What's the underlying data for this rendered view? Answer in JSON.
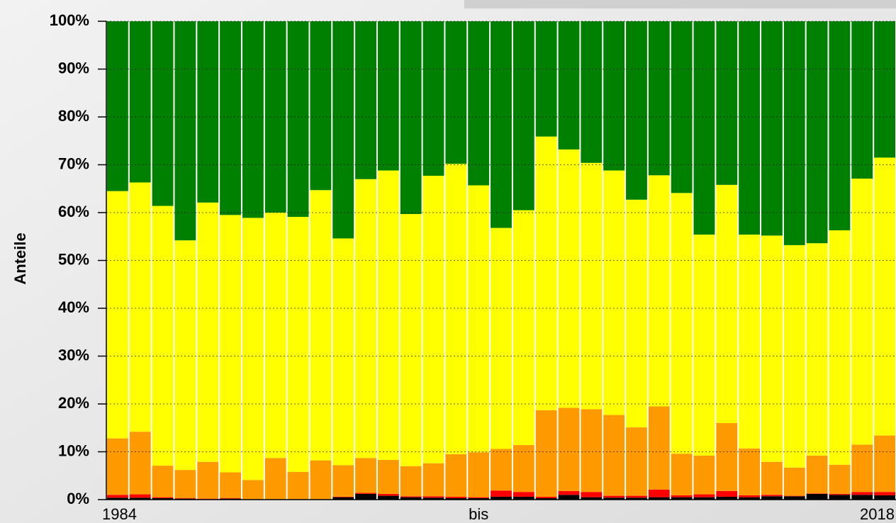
{
  "chart_data": {
    "type": "stacked_bar",
    "y_label": "Anteile",
    "categories": [
      "1984",
      null,
      null,
      null,
      null,
      null,
      null,
      null,
      null,
      null,
      null,
      null,
      null,
      null,
      null,
      null,
      "bis",
      null,
      null,
      null,
      null,
      null,
      null,
      null,
      null,
      null,
      null,
      null,
      null,
      null,
      null,
      null,
      null,
      null,
      "2018"
    ],
    "series": [
      {
        "color": "#000000",
        "values": [
          0.4,
          0.4,
          0.3,
          0.2,
          0.1,
          0.2,
          0.1,
          0.1,
          0.1,
          0.1,
          0.5,
          1.2,
          0.8,
          0.5,
          0.4,
          0.3,
          0.3,
          0.6,
          0.6,
          0.3,
          1.0,
          0.5,
          0.4,
          0.4,
          0.5,
          0.5,
          0.5,
          0.6,
          0.5,
          0.7,
          0.7,
          1.2,
          1.0,
          1.0,
          0.9
        ]
      },
      {
        "color": "#ff0000",
        "values": [
          0.6,
          0.7,
          0.2,
          0.1,
          0.1,
          0.1,
          0,
          0,
          0,
          0,
          0.1,
          0.2,
          0.4,
          0.2,
          0.3,
          0.3,
          0.2,
          1.3,
          1.0,
          0.3,
          0.8,
          1.1,
          0.4,
          0.4,
          1.6,
          0.4,
          0.6,
          1.2,
          0.4,
          0.3,
          0.1,
          0.1,
          0.2,
          0.6,
          0.7
        ]
      },
      {
        "color": "#ff9900",
        "values": [
          11.8,
          13.1,
          6.6,
          5.9,
          7.7,
          5.4,
          4.0,
          8.6,
          5.7,
          8.1,
          6.6,
          7.3,
          7.1,
          6.3,
          6.9,
          8.9,
          9.4,
          8.7,
          9.8,
          18.1,
          17.4,
          17.3,
          16.9,
          14.3,
          17.4,
          8.7,
          8.1,
          14.2,
          9.8,
          6.9,
          5.9,
          7.9,
          6.1,
          9.9,
          11.8
        ]
      },
      {
        "color": "#ffff00",
        "values": [
          51.7,
          52.1,
          54.3,
          48.0,
          54.2,
          53.8,
          54.8,
          51.3,
          53.3,
          56.5,
          47.4,
          58.3,
          60.5,
          52.7,
          60.1,
          60.7,
          55.8,
          46.2,
          49.1,
          57.2,
          54.0,
          51.5,
          51.1,
          47.6,
          48.3,
          54.5,
          46.2,
          49.8,
          44.7,
          47.3,
          46.5,
          44.4,
          49.0,
          55.6,
          58.1
        ]
      },
      {
        "color": "#008000",
        "values": [
          35.5,
          33.7,
          38.6,
          45.8,
          37.9,
          40.5,
          41.1,
          40.0,
          40.9,
          35.3,
          45.4,
          33.0,
          31.2,
          40.3,
          32.3,
          29.8,
          34.3,
          43.2,
          39.5,
          24.1,
          26.8,
          29.6,
          31.2,
          37.3,
          32.2,
          35.9,
          44.6,
          34.2,
          44.6,
          44.8,
          46.8,
          46.4,
          43.7,
          32.9,
          28.5
        ]
      }
    ],
    "ylim": [
      0,
      100
    ],
    "yticks": [
      {
        "value": 0,
        "label": "0%"
      },
      {
        "value": 10,
        "label": "10%"
      },
      {
        "value": 20,
        "label": "20%"
      },
      {
        "value": 30,
        "label": "30%"
      },
      {
        "value": 40,
        "label": "40%"
      },
      {
        "value": 50,
        "label": "50%"
      },
      {
        "value": 60,
        "label": "60%"
      },
      {
        "value": 70,
        "label": "70%"
      },
      {
        "value": 80,
        "label": "80%"
      },
      {
        "value": 90,
        "label": "90%"
      },
      {
        "value": 100,
        "label": "100%"
      }
    ],
    "grid": true
  }
}
